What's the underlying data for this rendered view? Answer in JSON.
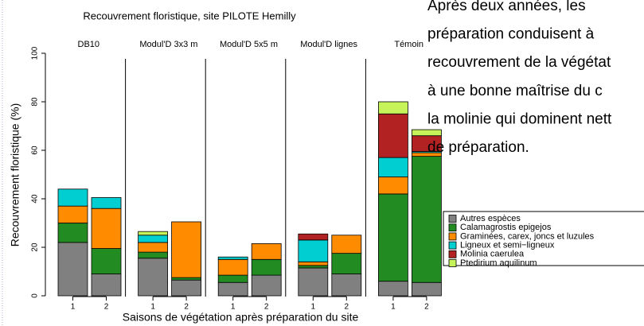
{
  "chart_data": {
    "type": "bar",
    "stacked": true,
    "title": "Recouvrement floristique, site PILOTE Hemilly",
    "ylabel": "Recouvrement floristique (%)",
    "xlabel": "Saisons de végétation après préparation du site",
    "ylim": [
      0,
      100
    ],
    "yticks": [
      0,
      20,
      40,
      60,
      80,
      100
    ],
    "legend_names": [
      "Autres espèces",
      "Calamagrostis epigejos",
      "Graminées, carex, joncs et luzules",
      "Ligneux et semi−ligneux",
      "Molinia caerulea",
      "Ptedirium aquilinum"
    ],
    "colors": [
      "#808080",
      "#228b22",
      "#ff8c00",
      "#00ced1",
      "#b22222",
      "#c6f25a"
    ],
    "panels": [
      {
        "title": "DB10",
        "categories": [
          "1",
          "2"
        ],
        "series": [
          [
            22,
            9
          ],
          [
            8,
            10.5
          ],
          [
            7,
            16.5
          ],
          [
            7,
            4.5
          ],
          [
            0,
            0
          ],
          [
            0,
            0
          ]
        ]
      },
      {
        "title": "Modul'D 3x3 m",
        "categories": [
          "1",
          "2"
        ],
        "series": [
          [
            15.5,
            6.5
          ],
          [
            2.5,
            1
          ],
          [
            4,
            23
          ],
          [
            3,
            0
          ],
          [
            0,
            0
          ],
          [
            1.5,
            0
          ]
        ]
      },
      {
        "title": "Modul'D 5x5 m",
        "categories": [
          "1",
          "2"
        ],
        "series": [
          [
            5.5,
            8.5
          ],
          [
            3,
            6.5
          ],
          [
            6.5,
            6.5
          ],
          [
            1,
            0
          ],
          [
            0,
            0
          ],
          [
            0,
            0
          ]
        ]
      },
      {
        "title": "Modul'D lignes",
        "categories": [
          "1",
          "2"
        ],
        "series": [
          [
            11.5,
            9
          ],
          [
            1,
            8.5
          ],
          [
            1.5,
            7.5
          ],
          [
            9,
            0
          ],
          [
            2.5,
            0
          ],
          [
            0,
            0
          ]
        ]
      },
      {
        "title": "Témoin",
        "categories": [
          "1",
          "2"
        ],
        "series": [
          [
            6,
            5.5
          ],
          [
            36,
            52
          ],
          [
            7,
            1.5
          ],
          [
            8,
            0.5
          ],
          [
            18,
            6.5
          ],
          [
            5,
            2.5
          ]
        ]
      }
    ]
  },
  "text_lines": [
    "Après deux années, les",
    "préparation conduisent à",
    "recouvrement de la végétat",
    "à une bonne maîtrise du c",
    "la molinie qui dominent nett",
    "de préparation."
  ]
}
